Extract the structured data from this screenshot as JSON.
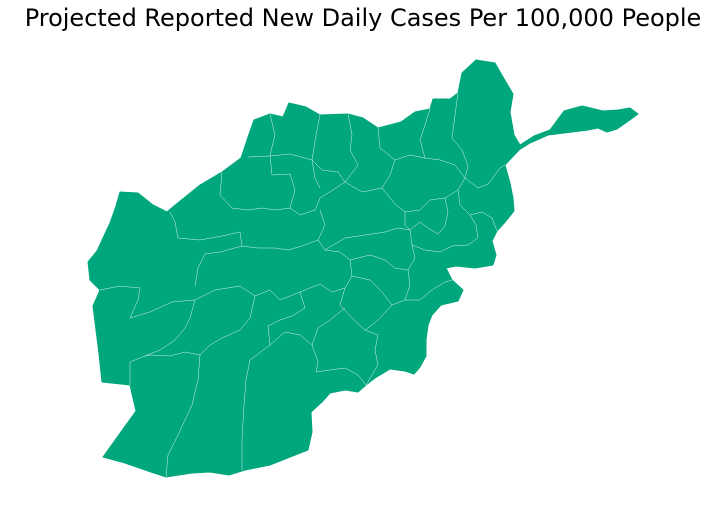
{
  "title": "Projected Reported New Daily Cases Per 100,000 People",
  "map": {
    "country": "Afghanistan",
    "region_fill": "#00a67c",
    "border_color": "#ffffff"
  }
}
